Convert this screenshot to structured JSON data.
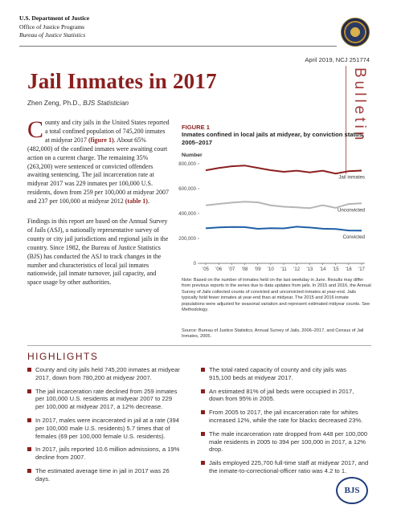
{
  "agency": {
    "department": "U.S. Department of Justice",
    "office": "Office of Justice Programs",
    "bureau": "Bureau of Justice Statistics"
  },
  "issue": "April 2019, NCJ 251774",
  "series_word": "Bulletin",
  "title": "Jail Inmates in 2017",
  "author": {
    "name": "Zhen Zeng, Ph.D., ",
    "role": "BJS Statistician"
  },
  "intro": {
    "dropcap": "C",
    "p1a": "ounty and city jails in the United States reported a total confined population of 745,200 inmates at midyear 2017 ",
    "ref1": "(figure 1)",
    "p1b": ". About 65% (482,000) of the confined inmates were awaiting court action on a current charge. The remaining 35% (263,200) were sentenced or convicted offenders awaiting sentencing. The jail incarceration rate at midyear 2017 was 229 inmates per 100,000 U.S. residents, down from 259 per 100,000 at midyear 2007 and 237 per 100,000 at midyear 2012 ",
    "ref2": "(table 1)",
    "p1c": ".",
    "p2": "Findings in this report are based on the Annual Survey of Jails (ASJ), a nationally representative survey of county or city jail jurisdictions and regional jails in the country. Since 1982, the Bureau of Justice Statistics (BJS) has conducted the ASJ to track changes in the number and characteristics of local jail inmates nationwide, jail inmate turnover, jail capacity, and space usage by other authorities."
  },
  "figure": {
    "label": "FIGURE 1",
    "title": "Inmates confined in local jails at midyear, by conviction status, 2005–2017",
    "note": "Note: Based on the number of inmates held on the last weekday in June. Results may differ from previous reports in the series due to data updates from jails. In 2015 and 2016, the Annual Survey of Jails collected counts of convicted and unconvicted inmates at year-end. Jails typically hold fewer inmates at year-end than at midyear. The 2015 and 2016 inmate populations were adjusted for seasonal variation and represent estimated midyear counts. See Methodology.",
    "source": "Source: Bureau of Justice Statistics, Annual Survey of Jails, 2006–2017, and Census of Jail Inmates, 2005."
  },
  "chart_data": {
    "type": "line",
    "ylabel": "Number",
    "x": [
      "'05",
      "'06",
      "'07",
      "'08",
      "'09",
      "'10",
      "'11",
      "'12",
      "'13",
      "'14",
      "'15",
      "'16",
      "'17"
    ],
    "yticks": [
      "0",
      "200,000",
      "400,000",
      "600,000",
      "800,000"
    ],
    "ylim": [
      0,
      800000
    ],
    "colors": {
      "jail_inmates": "#8b1f1f",
      "unconvicted": "#b5b5b5",
      "convicted": "#1e5fa8"
    },
    "series": [
      {
        "name": "Jail inmates",
        "values": [
          747500,
          765800,
          780200,
          785600,
          767400,
          748700,
          735600,
          744500,
          731200,
          744600,
          721300,
          740700,
          745200
        ]
      },
      {
        "name": "Unconvicted",
        "values": [
          466300,
          477200,
          487800,
          494800,
          490200,
          466500,
          454700,
          450100,
          443400,
          466400,
          445900,
          476700,
          482000
        ]
      },
      {
        "name": "Convicted",
        "values": [
          281200,
          288600,
          292400,
          290800,
          277200,
          282200,
          280900,
          294400,
          287800,
          278200,
          275400,
          264000,
          263200
        ]
      }
    ]
  },
  "highlights": {
    "title": "HIGHLIGHTS",
    "left": [
      "County and city jails held 745,200 inmates at midyear 2017, down from 780,200 at midyear 2007.",
      "The jail incarceration rate declined from 259 inmates per 100,000 U.S. residents at midyear 2007 to 229 per 100,000 at midyear 2017, a 12% decrease.",
      "In 2017, males were incarcerated in jail at a rate (394 per 100,000 male U.S. residents) 5.7 times that of females (69 per 100,000 female U.S. residents).",
      "In 2017, jails reported 10.6 million admissions, a 19% decline from 2007.",
      "The estimated average time in jail in 2017 was 26 days."
    ],
    "right": [
      "The total rated capacity of county and city jails was 915,100 beds at midyear 2017.",
      "An estimated 81% of jail beds were occupied in 2017, down from 95% in 2005.",
      "From 2005 to 2017, the jail incarceration rate for whites increased 12%, while the rate for blacks decreased 23%.",
      "The male incarceration rate dropped from 448 per 100,000 male residents in 2005 to 394 per 100,000 in 2017, a 12% drop.",
      "Jails employed 225,700 full-time staff at midyear 2017, and the inmate-to-correctional-officer ratio was 4.2 to 1."
    ]
  },
  "logo_text": "BJS"
}
